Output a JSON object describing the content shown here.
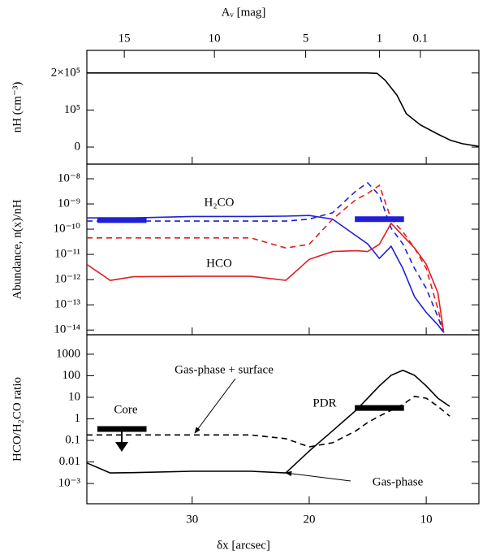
{
  "chart_data": [
    {
      "type": "line",
      "x2label": "Aᵥ [mag]",
      "ylabel": "nH (cm⁻³)",
      "xlim": [
        39,
        5.5
      ],
      "x2ticks": [
        {
          "value": 35.8,
          "label": "15"
        },
        {
          "value": 28.1,
          "label": "10"
        },
        {
          "value": 20.3,
          "label": "5"
        },
        {
          "value": 14.0,
          "label": "1"
        },
        {
          "value": 10.5,
          "label": "0.1"
        }
      ],
      "ylim": [
        -46000,
        261000
      ],
      "yticks": [
        {
          "value": 0,
          "label": "0"
        },
        {
          "value": 100000,
          "label": "10⁵"
        },
        {
          "value": 200000,
          "label": "2×10⁵"
        }
      ],
      "x": [
        39,
        30,
        20,
        15,
        14.2,
        13.5,
        12.5,
        11.7,
        10.5,
        9.0,
        7.9,
        6.9,
        5.5
      ],
      "series": [
        {
          "color": "#000000",
          "dashed": false,
          "values": [
            200000,
            200000,
            200000,
            200000,
            199000,
            180000,
            140000,
            90000,
            60000,
            35000,
            18000,
            9000,
            2000
          ]
        }
      ]
    },
    {
      "type": "line",
      "ylabel": "Abundance, n(x)/nH",
      "yscale": "log",
      "xlim": [
        39,
        5.5
      ],
      "ylim": [
        6.5e-15,
        3.8e-08
      ],
      "yticks": [
        {
          "value": 1e-08,
          "label": "10⁻⁸"
        },
        {
          "value": 1e-09,
          "label": "10⁻⁹"
        },
        {
          "value": 1e-10,
          "label": "10⁻¹⁰"
        },
        {
          "value": 1e-11,
          "label": "10⁻¹¹"
        },
        {
          "value": 1e-12,
          "label": "10⁻¹²"
        },
        {
          "value": 1e-13,
          "label": "10⁻¹³"
        },
        {
          "value": 1e-14,
          "label": "10⁻¹⁴"
        }
      ],
      "x": [
        39,
        37,
        35,
        30,
        25,
        22,
        20,
        18,
        16,
        15,
        14,
        13,
        12,
        11,
        10,
        9,
        8.5
      ],
      "series": [
        {
          "color": "#1f1fd6",
          "dashed": false,
          "values": [
            2.8e-10,
            2.8e-10,
            2.8e-10,
            3.2e-10,
            3.2e-10,
            3.3e-10,
            3.5e-10,
            2.5e-10,
            5.5e-11,
            2.6e-11,
            6.9e-12,
            2.1e-11,
            2.8e-12,
            2.1e-13,
            5e-14,
            1.6e-14,
            7.9e-15
          ]
        },
        {
          "color": "#1f1fd6",
          "dashed": true,
          "values": [
            2.1e-10,
            2.1e-10,
            2.1e-10,
            2.1e-10,
            2.1e-10,
            2.1e-10,
            2.5e-10,
            4.5e-10,
            3.3e-09,
            6.9e-09,
            2.2e-09,
            1.1e-10,
            2.6e-11,
            2.8e-12,
            4.5e-13,
            3.3e-14,
            7.9e-15
          ]
        },
        {
          "color": "#e02020",
          "dashed": false,
          "values": [
            4e-12,
            9.3e-13,
            1.3e-12,
            1.35e-12,
            1.35e-12,
            9.3e-13,
            6.3e-12,
            1.3e-11,
            1.4e-11,
            1.3e-11,
            2.5e-11,
            1.7e-10,
            5.5e-11,
            1.8e-11,
            4.1e-12,
            3e-13,
            7.9e-15
          ]
        },
        {
          "color": "#e02020",
          "dashed": true,
          "values": [
            4.5e-11,
            4.5e-11,
            4.5e-11,
            4.5e-11,
            4.5e-11,
            1.8e-11,
            2.5e-11,
            2.5e-10,
            1.5e-09,
            2.6e-09,
            5.5e-09,
            2.5e-10,
            7.9e-11,
            1.8e-11,
            2.8e-12,
            6.9e-14,
            7.9e-15
          ]
        }
      ],
      "bars": [
        {
          "x": [
            38.1,
            33.9
          ],
          "value": 2.3e-10,
          "color": "#1f1fd6"
        },
        {
          "x": [
            16.1,
            11.9
          ],
          "value": 2.5e-10,
          "color": "#1f1fd6"
        }
      ],
      "annotations": [
        {
          "text": "H₂CO",
          "color": "#1f1fd6"
        },
        {
          "text": "HCO",
          "color": "#e02020"
        }
      ]
    },
    {
      "type": "line",
      "ylabel": "HCO/H₂CO ratio",
      "xlabel": "δx [arcsec]",
      "yscale": "log",
      "xlim": [
        39,
        5.5
      ],
      "ylim": [
        0.000115,
        8000
      ],
      "xticks": [
        30,
        20,
        10
      ],
      "yticks": [
        1000,
        100,
        10,
        1,
        0.1,
        0.01,
        {
          "value": 0.001,
          "label": "10⁻³"
        }
      ],
      "x": [
        39,
        37,
        35,
        30,
        25,
        22,
        20,
        18,
        16,
        15,
        14,
        13,
        12,
        11,
        10,
        9,
        8
      ],
      "series": [
        {
          "color": "#000000",
          "dashed": false,
          "values": [
            0.009,
            0.0031,
            0.0032,
            0.0037,
            0.0037,
            0.0031,
            0.032,
            0.28,
            2.5,
            9.1,
            34,
            105,
            178,
            105,
            34,
            9.1,
            3.8
          ]
        },
        {
          "color": "#000000",
          "dashed": true,
          "values": [
            0.18,
            0.18,
            0.18,
            0.18,
            0.18,
            0.12,
            0.05,
            0.078,
            0.28,
            0.68,
            1.35,
            2.5,
            4.6,
            11,
            9.1,
            3.8,
            1.35
          ]
        }
      ],
      "bars": [
        {
          "x": [
            38.1,
            33.9
          ],
          "value": 0.34,
          "color": "#000000"
        },
        {
          "x": [
            16.1,
            11.9
          ],
          "value": 3.2,
          "color": "#000000"
        }
      ],
      "annotations": [
        {
          "text": "Core"
        },
        {
          "text": "PDR"
        },
        {
          "text": "Gas-phase + surface"
        },
        {
          "text": "Gas-phase"
        }
      ]
    }
  ]
}
